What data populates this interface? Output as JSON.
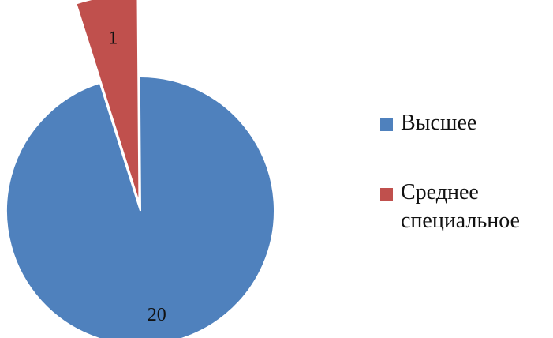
{
  "chart_data": {
    "type": "pie",
    "title": "",
    "slices": [
      {
        "label": "Высшее",
        "value": 20,
        "color": "#4f81bd",
        "exploded": false
      },
      {
        "label": "Среднее специальное",
        "value": 1,
        "color": "#c0504d",
        "exploded": true
      }
    ],
    "legend_position": "right"
  },
  "legend": {
    "items": [
      {
        "label": "Высшее",
        "color": "#4f81bd"
      },
      {
        "label": "Среднее\nспециальное",
        "color": "#c0504d"
      }
    ]
  }
}
